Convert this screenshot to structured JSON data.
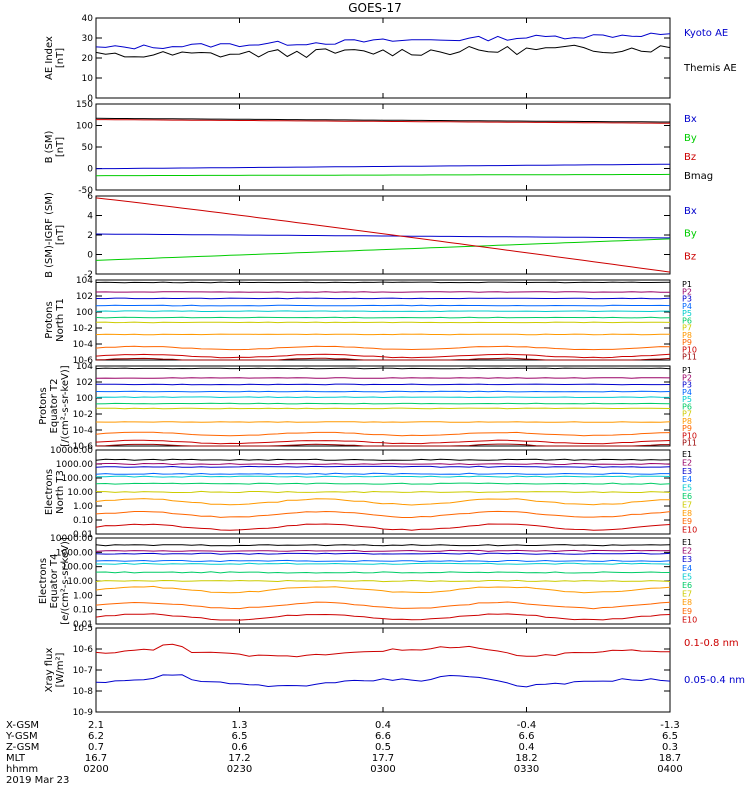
{
  "title": "GOES-17",
  "colors": {
    "black": "#000000",
    "blue": "#0000cc",
    "green": "#00cc00",
    "red": "#cc0000",
    "darkred": "#990000",
    "series_palette": [
      "#000000",
      "#990066",
      "#0000cc",
      "#0066ff",
      "#00cccc",
      "#00cc66",
      "#cccc00",
      "#ff9900",
      "#ff6600",
      "#cc0000",
      "#990000"
    ]
  },
  "chart_data": [
    {
      "id": "ae",
      "type": "line",
      "ylabel": "AE Index\n[nT]",
      "ylim": [
        0,
        40
      ],
      "yticks": [
        "0",
        "10",
        "20",
        "30",
        "40"
      ],
      "x": [
        0,
        60
      ],
      "series": [
        {
          "name": "Kyoto AE",
          "color": "#0000cc",
          "y_start": 25,
          "y_end": 32,
          "noise": 1.2
        },
        {
          "name": "Themis AE",
          "color": "#000000",
          "y_start": 21,
          "y_end": 25,
          "noise": 2.2
        }
      ]
    },
    {
      "id": "b_sm",
      "type": "line",
      "ylabel": "B (SM)\n[nT]",
      "ylim": [
        -60,
        150
      ],
      "yticks": [
        "-50",
        "0",
        "50",
        "100",
        "150"
      ],
      "series": [
        {
          "name": "Bx",
          "color": "#0000cc",
          "y_start": -8,
          "y_end": 3
        },
        {
          "name": "By",
          "color": "#00cc00",
          "y_start": -25,
          "y_end": -22
        },
        {
          "name": "Bz",
          "color": "#cc0000",
          "y_start": 112,
          "y_end": 103
        },
        {
          "name": "Bmag",
          "color": "#000000",
          "y_start": 115,
          "y_end": 106
        }
      ]
    },
    {
      "id": "b_igrf",
      "type": "line",
      "ylabel": "B (SM)-IGRF (SM)\n[nT]",
      "ylim": [
        -2,
        6
      ],
      "yticks": [
        "-2",
        "0",
        "2",
        "4",
        "6"
      ],
      "series": [
        {
          "name": "Bx",
          "color": "#0000cc",
          "y_start": 2.1,
          "y_end": 1.7
        },
        {
          "name": "By",
          "color": "#00cc00",
          "y_start": -0.6,
          "y_end": 1.6
        },
        {
          "name": "Bz",
          "color": "#cc0000",
          "y_start": 5.8,
          "y_end": -1.8
        }
      ]
    },
    {
      "id": "protons_n",
      "type": "line",
      "ylabel": "Protons\nNorth T1",
      "ylog": [
        -6,
        4
      ],
      "yticks": [
        "10-6",
        "10-4",
        "10-2",
        "100",
        "102",
        "104"
      ],
      "series_labels": [
        "P1",
        "P2",
        "P3",
        "P4",
        "P5",
        "P6",
        "P7",
        "P8",
        "P9",
        "P10",
        "P11"
      ],
      "log_levels": [
        3.7,
        2.5,
        1.7,
        0.8,
        0.1,
        -0.7,
        -1.3,
        -2.8,
        -4.5,
        -5.5,
        -6.0
      ]
    },
    {
      "id": "protons_eq",
      "type": "line",
      "ylabel": "Protons\nEquator T2\n[/(cm²-s-sr-keV)]",
      "ylog": [
        -6,
        4
      ],
      "yticks": [
        "10-6",
        "10-4",
        "10-2",
        "100",
        "102",
        "104"
      ],
      "series_labels": [
        "P1",
        "P2",
        "P3",
        "P4",
        "P5",
        "P6",
        "P7",
        "P8",
        "P9",
        "P10",
        "P11"
      ],
      "log_levels": [
        3.7,
        2.5,
        1.7,
        0.8,
        0.1,
        -0.7,
        -1.3,
        -3.0,
        -4.5,
        -5.5,
        -6.0
      ]
    },
    {
      "id": "electrons_n",
      "type": "line",
      "ylabel": "Electrons\nNorth T3",
      "ylog": [
        -2,
        4
      ],
      "yticks": [
        "0.01",
        "0.10",
        "1.00",
        "10.00",
        "100.00",
        "1000.00",
        "10000.00"
      ],
      "series_labels": [
        "E1",
        "E2",
        "E3",
        "E4",
        "E5",
        "E6",
        "E7",
        "E8",
        "E9",
        "E10"
      ],
      "log_levels": [
        3.3,
        3.0,
        2.8,
        2.3,
        2.1,
        1.6,
        1.0,
        0.3,
        -0.6,
        -1.5
      ]
    },
    {
      "id": "electrons_eq",
      "type": "line",
      "ylabel": "Electrons\nEquator T4\n[e/(cm²-s-sr-keV)]",
      "ylog": [
        -2,
        4
      ],
      "yticks": [
        "0.01",
        "0.10",
        "1.00",
        "10.00",
        "100.00",
        "1000.00",
        "10000.00"
      ],
      "series_labels": [
        "E1",
        "E2",
        "E3",
        "E4",
        "E5",
        "E6",
        "E7",
        "E8",
        "E9",
        "E10"
      ],
      "log_levels": [
        3.5,
        3.1,
        2.9,
        2.4,
        2.2,
        1.6,
        1.0,
        0.4,
        -0.7,
        -1.5
      ]
    },
    {
      "id": "xray",
      "type": "line",
      "ylabel": "Xray flux\n[W/m²]",
      "ylog": [
        -9,
        -5
      ],
      "yticks": [
        "10-9",
        "10-8",
        "10-7",
        "10-6",
        "10-5"
      ],
      "series": [
        {
          "name": "0.1-0.8 nm",
          "color": "#cc0000",
          "log": -6.2
        },
        {
          "name": "0.05-0.4 nm",
          "color": "#0000cc",
          "log": -7.6
        }
      ]
    }
  ],
  "x_axis": {
    "rows": [
      {
        "label": "X-GSM",
        "values": [
          "2.1",
          "1.3",
          "0.4",
          "-0.4",
          "-1.3"
        ]
      },
      {
        "label": "Y-GSM",
        "values": [
          "6.2",
          "6.5",
          "6.6",
          "6.6",
          "6.5"
        ]
      },
      {
        "label": "Z-GSM",
        "values": [
          "0.7",
          "0.6",
          "0.5",
          "0.4",
          "0.3"
        ]
      },
      {
        "label": "MLT",
        "values": [
          "16.7",
          "17.2",
          "17.7",
          "18.2",
          "18.7"
        ]
      },
      {
        "label": "hhmm",
        "values": [
          "0200",
          "0230",
          "0300",
          "0330",
          "0400"
        ]
      }
    ],
    "date": "2019 Mar 23"
  }
}
